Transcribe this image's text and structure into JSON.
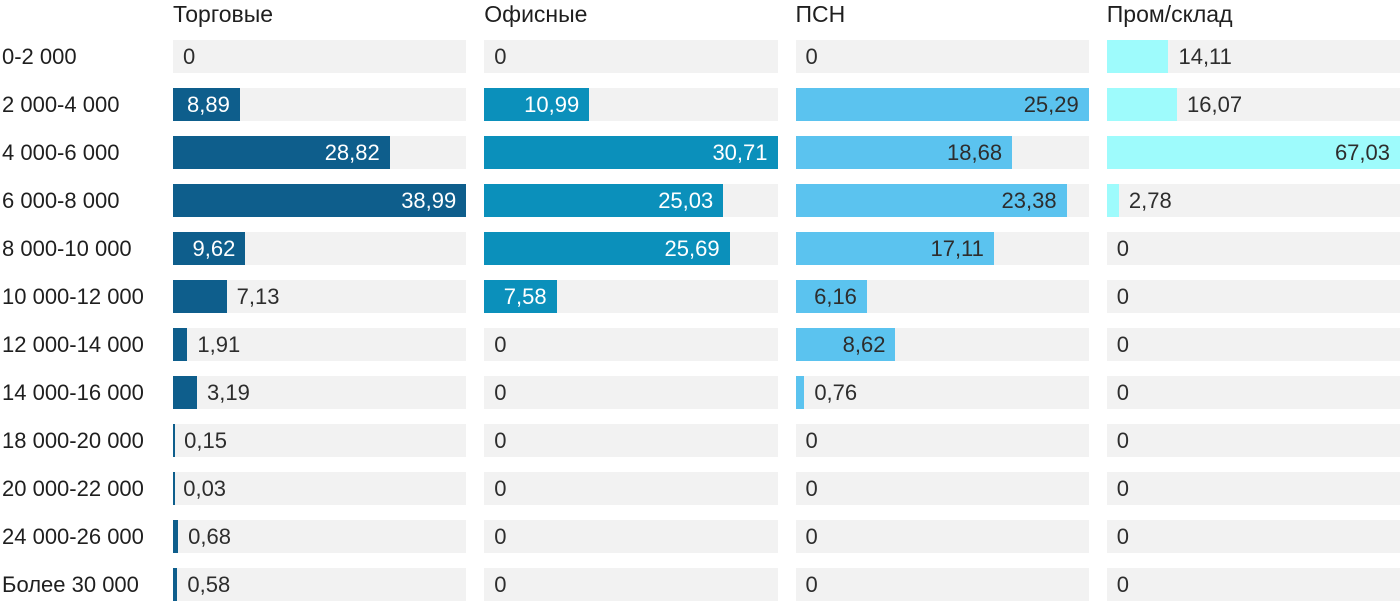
{
  "chart_data": {
    "type": "bar",
    "orientation": "horizontal",
    "title": "",
    "xlabel": "",
    "ylabel": "",
    "grid": false,
    "legend_position": "column-headers-top",
    "scaling": "each column scaled to its own max value (max fills track width)",
    "track_color": "#f2f2f2",
    "outside_label_color": "#2d2d2d",
    "categories": [
      "0-2 000",
      "2 000-4 000",
      "4 000-6 000",
      "6 000-8 000",
      "8 000-10 000",
      "10 000-12 000",
      "12 000-14 000",
      "14 000-16 000",
      "18 000-20 000",
      "20 000-22 000",
      "24 000-26 000",
      "Более 30 000"
    ],
    "series": [
      {
        "name": "Торговые",
        "color": "#0e5e8c",
        "inside_label_color": "#ffffff",
        "values": [
          0,
          8.89,
          28.82,
          38.99,
          9.62,
          7.13,
          1.91,
          3.19,
          0.15,
          0.03,
          0.68,
          0.58
        ],
        "labels": [
          "0",
          "8,89",
          "28,82",
          "38,99",
          "9,62",
          "7,13",
          "1,91",
          "3,19",
          "0,15",
          "0,03",
          "0,68",
          "0,58"
        ]
      },
      {
        "name": "Офисные",
        "color": "#0b90bb",
        "inside_label_color": "#ffffff",
        "values": [
          0,
          10.99,
          30.71,
          25.03,
          25.69,
          7.58,
          0,
          0,
          0,
          0,
          0,
          0
        ],
        "labels": [
          "0",
          "10,99",
          "30,71",
          "25,03",
          "25,69",
          "7,58",
          "0",
          "0",
          "0",
          "0",
          "0",
          "0"
        ]
      },
      {
        "name": "ПСН",
        "color": "#5bc3ef",
        "inside_label_color": "#2d2d2d",
        "values": [
          0,
          25.29,
          18.68,
          23.38,
          17.11,
          6.16,
          8.62,
          0.76,
          0,
          0,
          0,
          0
        ],
        "labels": [
          "0",
          "25,29",
          "18,68",
          "23,38",
          "17,11",
          "6,16",
          "8,62",
          "0,76",
          "0",
          "0",
          "0",
          "0"
        ]
      },
      {
        "name": "Пром/склад",
        "color": "#9efbfc",
        "inside_label_color": "#2d2d2d",
        "values": [
          14.11,
          16.07,
          67.03,
          2.78,
          0,
          0,
          0,
          0,
          0,
          0,
          0,
          0
        ],
        "labels": [
          "14,11",
          "16,07",
          "67,03",
          "2,78",
          "0",
          "0",
          "0",
          "0",
          "0",
          "0",
          "0",
          "0"
        ]
      }
    ]
  }
}
